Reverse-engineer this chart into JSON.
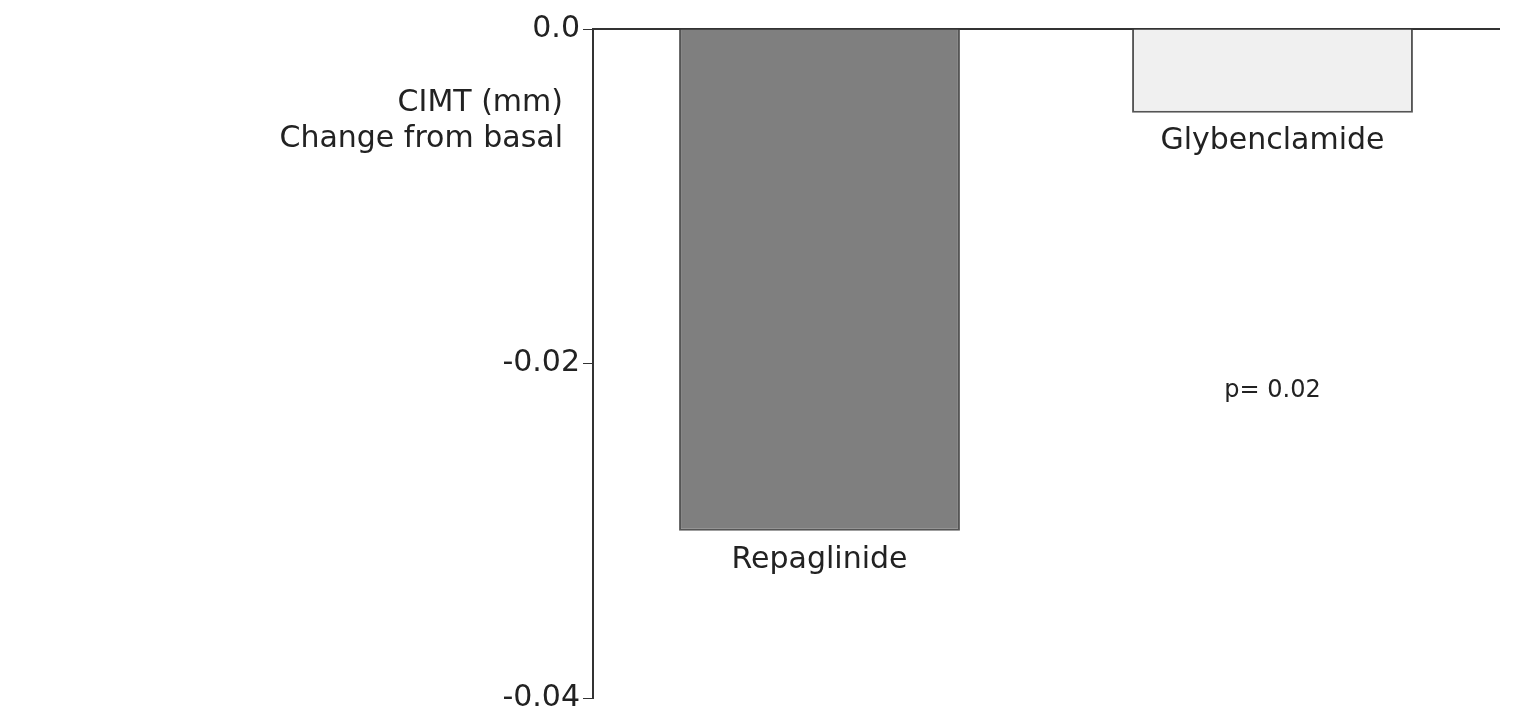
{
  "chart_data": {
    "type": "bar",
    "ylabel": "CIMT (mm)\nChange from basal",
    "categories": [
      "Repaglinide",
      "Glybenclamide"
    ],
    "series": [
      {
        "values": [
          -0.03,
          -0.005
        ],
        "colors": [
          "#7f7f7f",
          "#f0f0f0"
        ]
      }
    ],
    "ylim": [
      -0.04,
      0
    ],
    "yticks": [
      {
        "value": 0,
        "label": "0.0"
      },
      -0.02,
      -0.04
    ],
    "grid": false,
    "legend": false,
    "annotations": [
      "p= 0.02"
    ]
  }
}
